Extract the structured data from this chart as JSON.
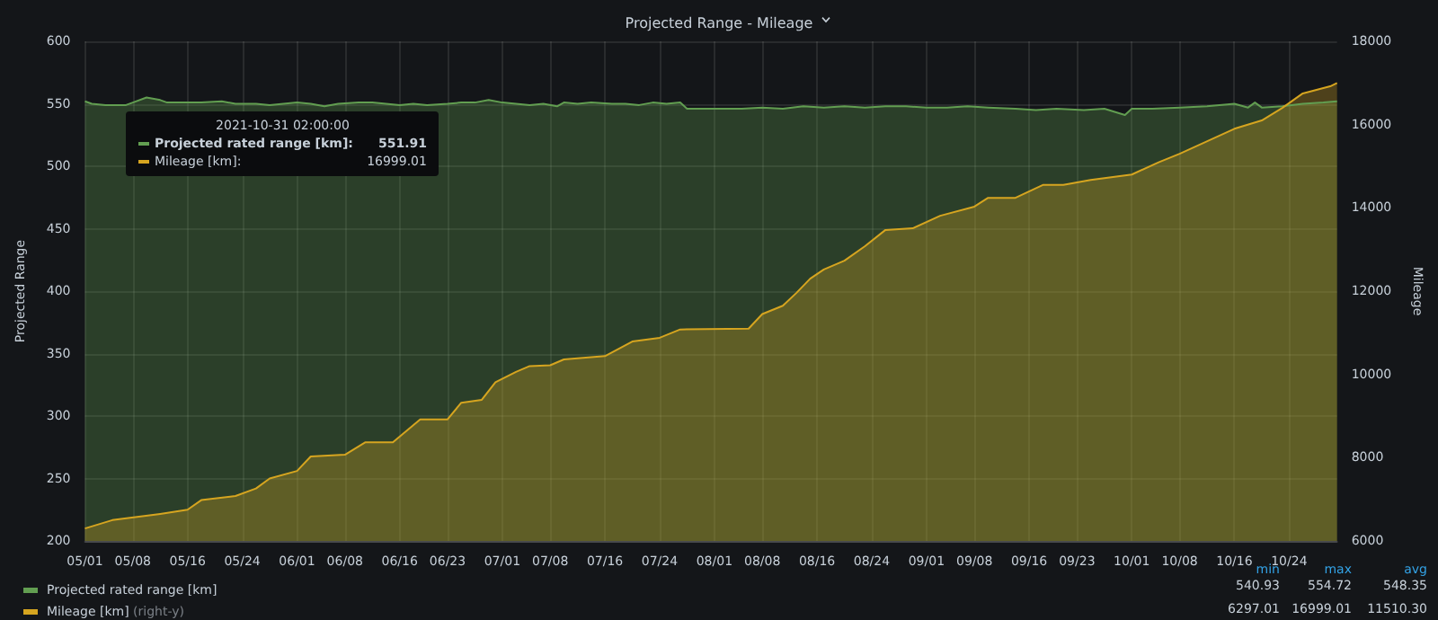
{
  "chart_data": {
    "type": "area",
    "title": "Projected Range - Mileage",
    "ylabel": "Projected Range",
    "y2label": "Mileage",
    "xlim": [
      "2021-05-01",
      "2021-10-31"
    ],
    "xticks": [
      {
        "value": "2021-05-01",
        "label": "05/01"
      },
      {
        "value": "2021-05-08",
        "label": "05/08"
      },
      {
        "value": "2021-05-16",
        "label": "05/16"
      },
      {
        "value": "2021-05-24",
        "label": "05/24"
      },
      {
        "value": "2021-06-01",
        "label": "06/01"
      },
      {
        "value": "2021-06-08",
        "label": "06/08"
      },
      {
        "value": "2021-06-16",
        "label": "06/16"
      },
      {
        "value": "2021-06-23",
        "label": "06/23"
      },
      {
        "value": "2021-07-01",
        "label": "07/01"
      },
      {
        "value": "2021-07-08",
        "label": "07/08"
      },
      {
        "value": "2021-07-16",
        "label": "07/16"
      },
      {
        "value": "2021-07-24",
        "label": "07/24"
      },
      {
        "value": "2021-08-01",
        "label": "08/01"
      },
      {
        "value": "2021-08-08",
        "label": "08/08"
      },
      {
        "value": "2021-08-16",
        "label": "08/16"
      },
      {
        "value": "2021-08-24",
        "label": "08/24"
      },
      {
        "value": "2021-09-01",
        "label": "09/01"
      },
      {
        "value": "2021-09-08",
        "label": "09/08"
      },
      {
        "value": "2021-09-16",
        "label": "09/16"
      },
      {
        "value": "2021-09-23",
        "label": "09/23"
      },
      {
        "value": "2021-10-01",
        "label": "10/01"
      },
      {
        "value": "2021-10-08",
        "label": "10/08"
      },
      {
        "value": "2021-10-16",
        "label": "10/16"
      },
      {
        "value": "2021-10-24",
        "label": "10/24"
      }
    ],
    "ylim": [
      200,
      600
    ],
    "yticks": [
      200,
      250,
      300,
      350,
      400,
      450,
      500,
      550,
      600
    ],
    "y2lim": [
      6000,
      18000
    ],
    "y2ticks": [
      6000,
      8000,
      10000,
      12000,
      14000,
      16000,
      18000
    ],
    "grid": true,
    "legend": "bottom left",
    "series": [
      {
        "name": "Projected rated range [km]",
        "color": "#629e51",
        "x": [
          "2021-05-01",
          "2021-05-02",
          "2021-05-04",
          "2021-05-07",
          "2021-05-08",
          "2021-05-10",
          "2021-05-12",
          "2021-05-13",
          "2021-05-16",
          "2021-05-18",
          "2021-05-21",
          "2021-05-23",
          "2021-05-26",
          "2021-05-28",
          "2021-06-01",
          "2021-06-03",
          "2021-06-05",
          "2021-06-07",
          "2021-06-10",
          "2021-06-12",
          "2021-06-14",
          "2021-06-16",
          "2021-06-18",
          "2021-06-20",
          "2021-06-23",
          "2021-06-25",
          "2021-06-27",
          "2021-06-29",
          "2021-07-01",
          "2021-07-03",
          "2021-07-05",
          "2021-07-07",
          "2021-07-09",
          "2021-07-10",
          "2021-07-12",
          "2021-07-14",
          "2021-07-17",
          "2021-07-19",
          "2021-07-21",
          "2021-07-23",
          "2021-07-25",
          "2021-07-27",
          "2021-07-28",
          "2021-08-01",
          "2021-08-05",
          "2021-08-08",
          "2021-08-11",
          "2021-08-14",
          "2021-08-17",
          "2021-08-20",
          "2021-08-23",
          "2021-08-26",
          "2021-08-29",
          "2021-09-01",
          "2021-09-04",
          "2021-09-07",
          "2021-09-10",
          "2021-09-14",
          "2021-09-17",
          "2021-09-20",
          "2021-09-24",
          "2021-09-27",
          "2021-09-30",
          "2021-10-01",
          "2021-10-04",
          "2021-10-08",
          "2021-10-12",
          "2021-10-16",
          "2021-10-18",
          "2021-10-19",
          "2021-10-20",
          "2021-10-23",
          "2021-10-26",
          "2021-10-29",
          "2021-10-31"
        ],
        "values": [
          552,
          550,
          549,
          549,
          551,
          555,
          553,
          551,
          551,
          551,
          552,
          550,
          550,
          549,
          551,
          550,
          548,
          550,
          551,
          551,
          550,
          549,
          550,
          549,
          550,
          551,
          551,
          553,
          551,
          550,
          549,
          550,
          548,
          551,
          550,
          551,
          550,
          550,
          549,
          551,
          550,
          551,
          546,
          546,
          546,
          547,
          546,
          548,
          547,
          548,
          547,
          548,
          548,
          547,
          547,
          548,
          547,
          546,
          545,
          546,
          545,
          546,
          541,
          546,
          546,
          547,
          548,
          550,
          547,
          551,
          547,
          548,
          550,
          551,
          552
        ]
      },
      {
        "name": "Mileage [km]",
        "color": "#d6a520",
        "axis": "y2",
        "x": [
          "2021-05-01",
          "2021-05-05",
          "2021-05-12",
          "2021-05-16",
          "2021-05-18",
          "2021-05-23",
          "2021-05-26",
          "2021-05-28",
          "2021-06-01",
          "2021-06-03",
          "2021-06-08",
          "2021-06-11",
          "2021-06-15",
          "2021-06-19",
          "2021-06-23",
          "2021-06-25",
          "2021-06-28",
          "2021-06-30",
          "2021-07-03",
          "2021-07-05",
          "2021-07-08",
          "2021-07-10",
          "2021-07-16",
          "2021-07-20",
          "2021-07-24",
          "2021-07-27",
          "2021-08-06",
          "2021-08-08",
          "2021-08-11",
          "2021-08-13",
          "2021-08-15",
          "2021-08-17",
          "2021-08-20",
          "2021-08-23",
          "2021-08-26",
          "2021-08-30",
          "2021-09-03",
          "2021-09-08",
          "2021-09-10",
          "2021-09-14",
          "2021-09-18",
          "2021-09-21",
          "2021-09-25",
          "2021-10-01",
          "2021-10-05",
          "2021-10-08",
          "2021-10-16",
          "2021-10-20",
          "2021-10-23",
          "2021-10-26",
          "2021-10-30",
          "2021-10-31"
        ],
        "values": [
          6300,
          6500,
          6650,
          6750,
          6980,
          7080,
          7260,
          7500,
          7680,
          8030,
          8070,
          8370,
          8370,
          8920,
          8920,
          9320,
          9390,
          9810,
          10060,
          10200,
          10220,
          10360,
          10440,
          10790,
          10880,
          11080,
          11100,
          11450,
          11650,
          11960,
          12300,
          12520,
          12730,
          13080,
          13470,
          13510,
          13810,
          14030,
          14240,
          14240,
          14550,
          14550,
          14670,
          14800,
          15100,
          15300,
          15900,
          16100,
          16400,
          16750,
          16920,
          17000
        ]
      }
    ],
    "annotations": [
      "2021-10-31 02:00:00",
      "Projected rated range [km]:",
      "551.91",
      "Mileage [km]:",
      "16999.01",
      "min",
      "max",
      "avg",
      "540.93",
      "554.72",
      "548.35",
      "6297.01",
      "16999.01",
      "11510.30",
      "(right-y)"
    ]
  }
}
